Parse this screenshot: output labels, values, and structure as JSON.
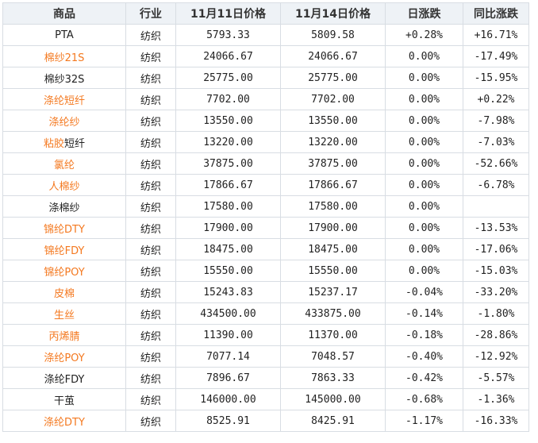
{
  "table": {
    "headers": [
      "商品",
      "行业",
      "11月11日价格",
      "11月14日价格",
      "日涨跌",
      "同比涨跌"
    ],
    "rows": [
      {
        "name": "PTA",
        "link": false,
        "industry": "纺织",
        "price_a": "5793.33",
        "price_b": "5809.58",
        "daily": "+0.28%",
        "daily_trend": "up",
        "yoy": "+16.71%",
        "yoy_trend": "up"
      },
      {
        "name": "棉纱21S",
        "link": true,
        "industry": "纺织",
        "price_a": "24066.67",
        "price_b": "24066.67",
        "daily": "0.00%",
        "daily_trend": "flat",
        "yoy": "-17.49%",
        "yoy_trend": "down"
      },
      {
        "name": "棉纱32S",
        "link": false,
        "industry": "纺织",
        "price_a": "25775.00",
        "price_b": "25775.00",
        "daily": "0.00%",
        "daily_trend": "flat",
        "yoy": "-15.95%",
        "yoy_trend": "down"
      },
      {
        "name": "涤纶短纤",
        "link": true,
        "industry": "纺织",
        "price_a": "7702.00",
        "price_b": "7702.00",
        "daily": "0.00%",
        "daily_trend": "flat",
        "yoy": "+0.22%",
        "yoy_trend": "up"
      },
      {
        "name": "涤纶纱",
        "link": true,
        "industry": "纺织",
        "price_a": "13550.00",
        "price_b": "13550.00",
        "daily": "0.00%",
        "daily_trend": "flat",
        "yoy": "-7.98%",
        "yoy_trend": "down"
      },
      {
        "name": "粘胶短纤",
        "link": "partial",
        "link_part": "粘胶",
        "rest_part": "短纤",
        "industry": "纺织",
        "price_a": "13220.00",
        "price_b": "13220.00",
        "daily": "0.00%",
        "daily_trend": "flat",
        "yoy": "-7.03%",
        "yoy_trend": "down"
      },
      {
        "name": "氯纶",
        "link": true,
        "industry": "纺织",
        "price_a": "37875.00",
        "price_b": "37875.00",
        "daily": "0.00%",
        "daily_trend": "flat",
        "yoy": "-52.66%",
        "yoy_trend": "down"
      },
      {
        "name": "人棉纱",
        "link": true,
        "industry": "纺织",
        "price_a": "17866.67",
        "price_b": "17866.67",
        "daily": "0.00%",
        "daily_trend": "flat",
        "yoy": "-6.78%",
        "yoy_trend": "down"
      },
      {
        "name": "涤棉纱",
        "link": false,
        "industry": "纺织",
        "price_a": "17580.00",
        "price_b": "17580.00",
        "daily": "0.00%",
        "daily_trend": "flat",
        "yoy": "",
        "yoy_trend": "flat"
      },
      {
        "name": "锦纶DTY",
        "link": true,
        "industry": "纺织",
        "price_a": "17900.00",
        "price_b": "17900.00",
        "daily": "0.00%",
        "daily_trend": "flat",
        "yoy": "-13.53%",
        "yoy_trend": "down"
      },
      {
        "name": "锦纶FDY",
        "link": true,
        "industry": "纺织",
        "price_a": "18475.00",
        "price_b": "18475.00",
        "daily": "0.00%",
        "daily_trend": "flat",
        "yoy": "-17.06%",
        "yoy_trend": "down"
      },
      {
        "name": "锦纶POY",
        "link": true,
        "industry": "纺织",
        "price_a": "15550.00",
        "price_b": "15550.00",
        "daily": "0.00%",
        "daily_trend": "flat",
        "yoy": "-15.03%",
        "yoy_trend": "down"
      },
      {
        "name": "皮棉",
        "link": true,
        "industry": "纺织",
        "price_a": "15243.83",
        "price_b": "15237.17",
        "daily": "-0.04%",
        "daily_trend": "down",
        "yoy": "-33.20%",
        "yoy_trend": "down"
      },
      {
        "name": "生丝",
        "link": true,
        "industry": "纺织",
        "price_a": "434500.00",
        "price_b": "433875.00",
        "daily": "-0.14%",
        "daily_trend": "down",
        "yoy": "-1.80%",
        "yoy_trend": "down"
      },
      {
        "name": "丙烯腈",
        "link": true,
        "industry": "纺织",
        "price_a": "11390.00",
        "price_b": "11370.00",
        "daily": "-0.18%",
        "daily_trend": "down",
        "yoy": "-28.86%",
        "yoy_trend": "down"
      },
      {
        "name": "涤纶POY",
        "link": true,
        "industry": "纺织",
        "price_a": "7077.14",
        "price_b": "7048.57",
        "daily": "-0.40%",
        "daily_trend": "down",
        "yoy": "-12.92%",
        "yoy_trend": "down"
      },
      {
        "name": "涤纶FDY",
        "link": false,
        "industry": "纺织",
        "price_a": "7896.67",
        "price_b": "7863.33",
        "daily": "-0.42%",
        "daily_trend": "down",
        "yoy": "-5.57%",
        "yoy_trend": "down"
      },
      {
        "name": "干茧",
        "link": false,
        "industry": "纺织",
        "price_a": "146000.00",
        "price_b": "145000.00",
        "daily": "-0.68%",
        "daily_trend": "down",
        "yoy": "-1.36%",
        "yoy_trend": "down"
      },
      {
        "name": "涤纶DTY",
        "link": true,
        "industry": "纺织",
        "price_a": "8525.91",
        "price_b": "8425.91",
        "daily": "-1.17%",
        "daily_trend": "down",
        "yoy": "-16.33%",
        "yoy_trend": "down"
      }
    ]
  },
  "colors": {
    "link": "#f47920",
    "up": "#e00000",
    "down": "#0a8f00",
    "header_bg": "#eef2f6",
    "border": "#d8dde3"
  }
}
